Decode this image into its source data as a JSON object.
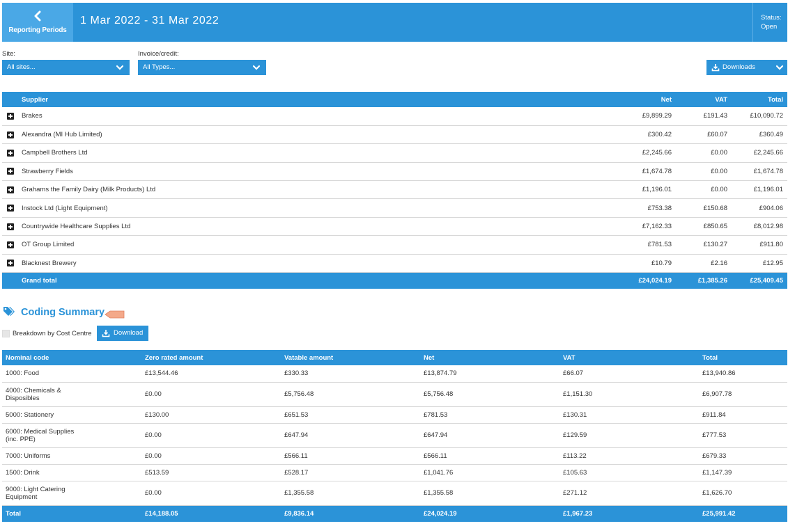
{
  "header": {
    "back_label": "Reporting Periods",
    "period": "1 Mar 2022 - 31 Mar 2022",
    "status_label": "Status:",
    "status_value": "Open"
  },
  "filters": {
    "site_label": "Site:",
    "site_value": "All sites...",
    "invoice_label": "Invoice/credit:",
    "invoice_value": "All Types...",
    "downloads_label": "Downloads"
  },
  "suppliers": {
    "headers": {
      "supplier": "Supplier",
      "net": "Net",
      "vat": "VAT",
      "total": "Total"
    },
    "rows": [
      {
        "name": "Brakes",
        "net": "£9,899.29",
        "vat": "£191.43",
        "total": "£10,090.72"
      },
      {
        "name": "Alexandra (MI Hub Limited)",
        "net": "£300.42",
        "vat": "£60.07",
        "total": "£360.49"
      },
      {
        "name": "Campbell Brothers Ltd",
        "net": "£2,245.66",
        "vat": "£0.00",
        "total": "£2,245.66"
      },
      {
        "name": "Strawberry Fields",
        "net": "£1,674.78",
        "vat": "£0.00",
        "total": "£1,674.78"
      },
      {
        "name": "Grahams the Family Dairy (Milk Products) Ltd",
        "net": "£1,196.01",
        "vat": "£0.00",
        "total": "£1,196.01"
      },
      {
        "name": "Instock Ltd (Light Equipment)",
        "net": "£753.38",
        "vat": "£150.68",
        "total": "£904.06"
      },
      {
        "name": "Countrywide Healthcare Supplies Ltd",
        "net": "£7,162.33",
        "vat": "£850.65",
        "total": "£8,012.98"
      },
      {
        "name": "OT Group Limited",
        "net": "£781.53",
        "vat": "£130.27",
        "total": "£911.80"
      },
      {
        "name": "Blacknest Brewery",
        "net": "£10.79",
        "vat": "£2.16",
        "total": "£12.95"
      }
    ],
    "grand_total": {
      "label": "Grand total",
      "net": "£24,024.19",
      "vat": "£1,385.26",
      "total": "£25,409.45"
    }
  },
  "coding": {
    "title": "Coding Summary",
    "breakdown_label": "Breakdown by Cost Centre",
    "download_label": "Download",
    "headers": [
      "Nominal code",
      "Zero rated amount",
      "Vatable amount",
      "Net",
      "VAT",
      "Total"
    ],
    "rows": [
      {
        "code": "1000: Food",
        "zero": "£13,544.46",
        "vatable": "£330.33",
        "net": "£13,874.79",
        "vat": "£66.07",
        "total": "£13,940.86"
      },
      {
        "code": "4000: Chemicals & Disposibles",
        "zero": "£0.00",
        "vatable": "£5,756.48",
        "net": "£5,756.48",
        "vat": "£1,151.30",
        "total": "£6,907.78"
      },
      {
        "code": "5000: Stationery",
        "zero": "£130.00",
        "vatable": "£651.53",
        "net": "£781.53",
        "vat": "£130.31",
        "total": "£911.84"
      },
      {
        "code": "6000: Medical Supplies (inc. PPE)",
        "zero": "£0.00",
        "vatable": "£647.94",
        "net": "£647.94",
        "vat": "£129.59",
        "total": "£777.53"
      },
      {
        "code": "7000: Uniforms",
        "zero": "£0.00",
        "vatable": "£566.11",
        "net": "£566.11",
        "vat": "£113.22",
        "total": "£679.33"
      },
      {
        "code": "1500: Drink",
        "zero": "£513.59",
        "vatable": "£528.17",
        "net": "£1,041.76",
        "vat": "£105.63",
        "total": "£1,147.39"
      },
      {
        "code": "9000: Light Catering Equipment",
        "zero": "£0.00",
        "vatable": "£1,355.58",
        "net": "£1,355.58",
        "vat": "£271.12",
        "total": "£1,626.70"
      }
    ],
    "total": {
      "label": "Total",
      "zero": "£14,188.05",
      "vatable": "£9,836.14",
      "net": "£24,024.19",
      "vat": "£1,967.23",
      "total": "£25,991.42"
    }
  },
  "colors": {
    "accent": "#2b93d8",
    "accent_light": "#4aa8e6",
    "marker": "#f4a98a"
  },
  "icons": [
    "chevron-left-icon",
    "chevron-down-icon",
    "download-icon",
    "expand-plus-icon",
    "tags-icon",
    "arrow-marker-icon"
  ]
}
